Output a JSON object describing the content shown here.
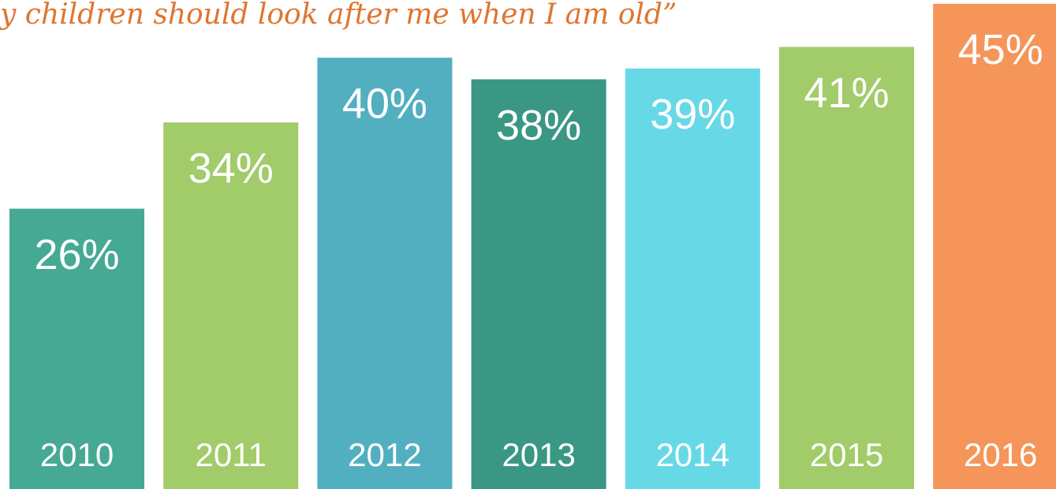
{
  "chart_data": {
    "type": "bar",
    "title": "y children should look after me when I am old”",
    "categories": [
      "2010",
      "2011",
      "2012",
      "2013",
      "2014",
      "2015",
      "2016"
    ],
    "values": [
      26,
      34,
      40,
      38,
      39,
      41,
      45
    ],
    "value_labels": [
      "26%",
      "34%",
      "40%",
      "38%",
      "39%",
      "41%",
      "45%"
    ],
    "colors": [
      "#45a994",
      "#a2cb6a",
      "#52afc0",
      "#3a9784",
      "#67d8e6",
      "#a2cb6a",
      "#f5955a"
    ]
  }
}
